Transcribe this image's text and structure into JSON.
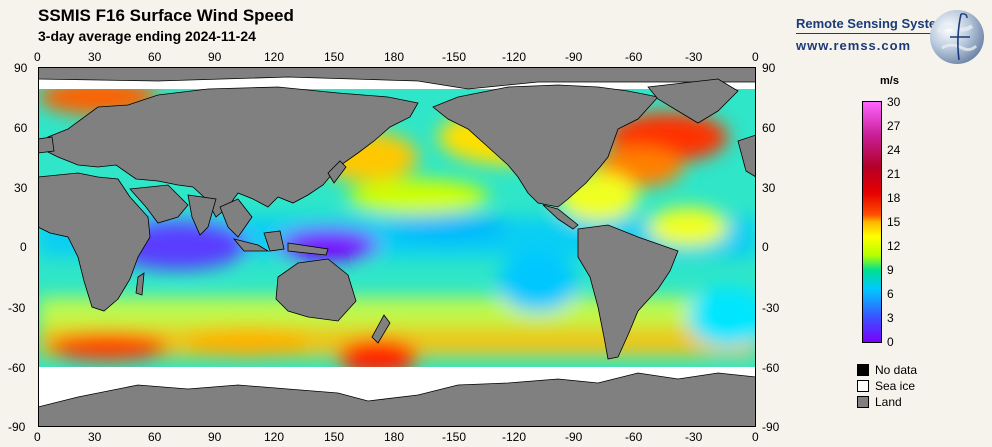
{
  "header": {
    "title": "SSMIS F16 Surface Wind Speed",
    "subtitle": "3-day average ending 2024-11-24"
  },
  "brand": {
    "name": "Remote Sensing Systems",
    "url": "www.remss.com"
  },
  "map": {
    "lon_labels_top": [
      "0",
      "30",
      "60",
      "90",
      "120",
      "150",
      "180",
      "-150",
      "-120",
      "-90",
      "-60",
      "-30",
      "0"
    ],
    "lon_labels_bottom": [
      "0",
      "30",
      "60",
      "90",
      "120",
      "150",
      "180",
      "-150",
      "-120",
      "-90",
      "-60",
      "-30",
      "0"
    ],
    "lat_labels_left": [
      "90",
      "60",
      "30",
      "0",
      "-30",
      "-60",
      "-90"
    ],
    "lat_labels_right": [
      "90",
      "60",
      "30",
      "0",
      "-30",
      "-60",
      "-90"
    ],
    "colors": {
      "land": "#808080",
      "sea_ice": "#ffffff",
      "no_data": "#000000",
      "background": "#f6f3ec"
    }
  },
  "colorbar": {
    "unit": "m/s",
    "min": 0,
    "max": 30,
    "labels": [
      "30",
      "27",
      "24",
      "21",
      "18",
      "15",
      "12",
      "9",
      "6",
      "3",
      "0"
    ]
  },
  "legend": {
    "items": [
      {
        "label": "No data",
        "color": "#000000"
      },
      {
        "label": "Sea ice",
        "color": "#ffffff"
      },
      {
        "label": "Land",
        "color": "#808080"
      }
    ]
  }
}
